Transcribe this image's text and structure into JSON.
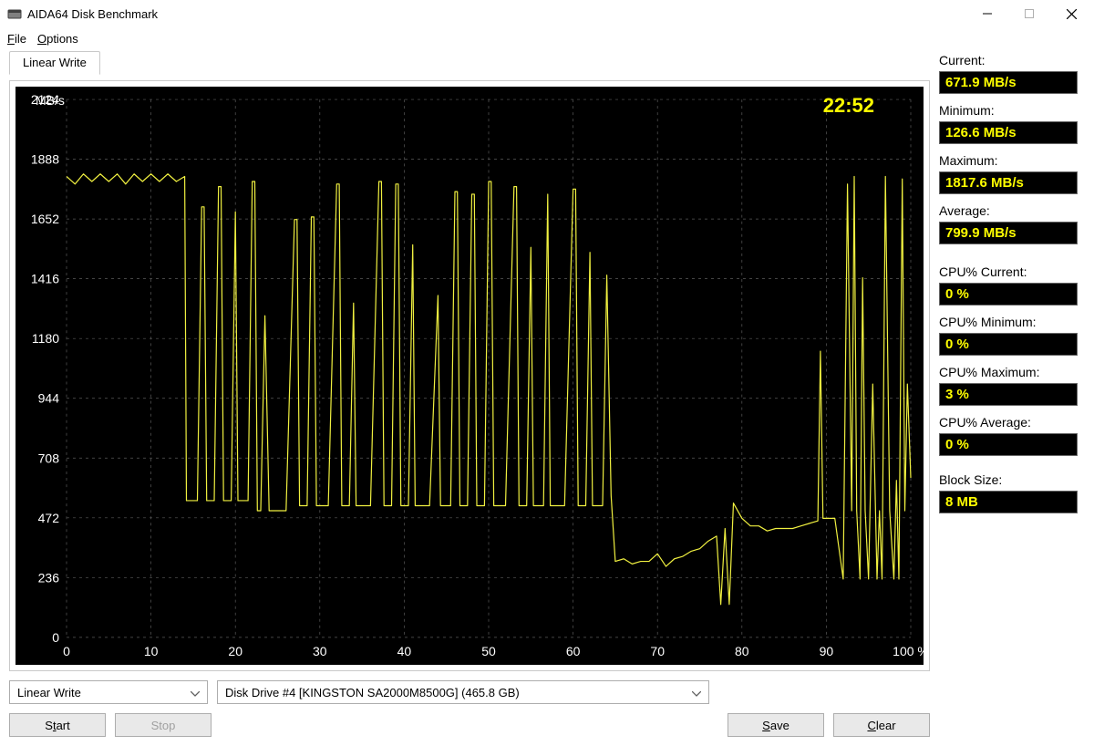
{
  "window": {
    "title": "AIDA64 Disk Benchmark"
  },
  "menu": {
    "file": "File",
    "options": "Options"
  },
  "tab": {
    "label": "Linear Write"
  },
  "chart": {
    "type": "line",
    "time_label": "22:52",
    "y_unit": "MB/s",
    "x_unit": "%",
    "ylim": [
      0,
      2124
    ],
    "xlim": [
      0,
      100
    ],
    "yticks": [
      0,
      236,
      472,
      708,
      944,
      1180,
      1416,
      1652,
      1888,
      2124
    ],
    "xticks": [
      0,
      10,
      20,
      30,
      40,
      50,
      60,
      70,
      80,
      90,
      100
    ],
    "background_color": "#000000",
    "grid_color": "#5a5a5a",
    "line_color": "#f0f040",
    "axis_text_color": "#ffffff",
    "time_text_color": "#ffff00",
    "axis_fontsize": 14,
    "line_width": 1.2,
    "data": {
      "x": [
        0,
        1,
        2,
        3,
        4,
        5,
        6,
        7,
        8,
        9,
        10,
        11,
        12,
        13,
        14,
        14.2,
        15,
        15.5,
        16,
        16.3,
        16.6,
        17,
        17.5,
        18,
        18.3,
        18.6,
        19,
        19.5,
        20,
        20.3,
        20.6,
        21,
        21.5,
        22,
        22.3,
        22.6,
        23,
        23.5,
        24,
        24.3,
        24.6,
        25,
        26,
        27,
        27.3,
        27.6,
        28,
        28.5,
        29,
        29.3,
        29.6,
        30,
        31,
        32,
        32.3,
        32.6,
        33,
        33.5,
        34,
        34.3,
        34.6,
        35,
        36,
        37,
        37.3,
        37.6,
        38,
        38.5,
        39,
        39.3,
        39.6,
        40,
        40.5,
        41,
        41.3,
        41.6,
        42,
        43,
        44,
        44.3,
        44.6,
        45,
        45.5,
        46,
        46.3,
        46.6,
        47,
        47.5,
        48,
        48.3,
        48.6,
        49,
        49.5,
        50,
        50.3,
        50.6,
        51,
        52,
        53,
        53.3,
        53.6,
        54,
        54.5,
        55,
        55.3,
        55.6,
        56,
        56.5,
        57,
        57.3,
        57.6,
        58,
        59,
        60,
        60.3,
        60.6,
        61,
        61.5,
        62,
        62.3,
        62.6,
        63,
        63.5,
        64,
        64.5,
        65,
        66,
        67,
        68,
        69,
        70,
        71,
        72,
        73,
        74,
        75,
        76,
        77,
        77.5,
        78,
        78.5,
        79,
        80,
        81,
        82,
        83,
        84,
        85,
        86,
        87,
        88,
        89,
        89.3,
        89.6,
        90,
        91,
        92,
        92.5,
        93,
        93.3,
        93.6,
        94,
        94.3,
        94.6,
        95,
        95.5,
        96,
        96.3,
        96.6,
        97,
        97.5,
        98,
        98.3,
        98.6,
        99,
        99.3,
        99.6,
        100
      ],
      "y": [
        1820,
        1790,
        1830,
        1800,
        1830,
        1800,
        1830,
        1790,
        1830,
        1800,
        1830,
        1800,
        1830,
        1800,
        1820,
        540,
        540,
        540,
        1700,
        1700,
        540,
        540,
        540,
        1780,
        1780,
        540,
        540,
        540,
        1680,
        540,
        540,
        540,
        540,
        1800,
        1800,
        500,
        500,
        1270,
        500,
        500,
        500,
        500,
        500,
        1650,
        1650,
        520,
        520,
        520,
        1660,
        1660,
        520,
        520,
        520,
        1790,
        1790,
        520,
        520,
        520,
        1320,
        520,
        520,
        520,
        520,
        1800,
        1800,
        520,
        520,
        520,
        1790,
        1790,
        520,
        520,
        520,
        1550,
        520,
        520,
        520,
        520,
        1350,
        520,
        520,
        520,
        520,
        1760,
        1760,
        520,
        520,
        520,
        1750,
        1750,
        520,
        520,
        520,
        1800,
        1800,
        520,
        520,
        520,
        1780,
        1780,
        520,
        520,
        520,
        1540,
        520,
        520,
        520,
        520,
        1750,
        520,
        520,
        520,
        520,
        1770,
        1770,
        520,
        520,
        520,
        1520,
        520,
        520,
        520,
        520,
        1430,
        560,
        300,
        310,
        290,
        300,
        300,
        330,
        280,
        310,
        320,
        340,
        350,
        380,
        400,
        130,
        430,
        130,
        530,
        470,
        440,
        440,
        420,
        430,
        430,
        430,
        440,
        450,
        460,
        1130,
        470,
        470,
        470,
        230,
        1790,
        500,
        1820,
        500,
        230,
        1420,
        500,
        230,
        1000,
        230,
        500,
        230,
        1820,
        500,
        230,
        620,
        230,
        1810,
        500,
        1000,
        630
      ]
    }
  },
  "controls": {
    "test_select": "Linear Write",
    "drive_select": "Disk Drive #4  [KINGSTON SA2000M8500G]  (465.8 GB)",
    "start": "Start",
    "stop": "Stop",
    "save": "Save",
    "clear": "Clear"
  },
  "metrics": [
    {
      "label": "Current:",
      "value": "671.9 MB/s"
    },
    {
      "label": "Minimum:",
      "value": "126.6 MB/s"
    },
    {
      "label": "Maximum:",
      "value": "1817.6 MB/s"
    },
    {
      "label": "Average:",
      "value": "799.9 MB/s"
    },
    {
      "label": "CPU% Current:",
      "value": "0 %"
    },
    {
      "label": "CPU% Minimum:",
      "value": "0 %"
    },
    {
      "label": "CPU% Maximum:",
      "value": "3 %"
    },
    {
      "label": "CPU% Average:",
      "value": "0 %"
    },
    {
      "label": "Block Size:",
      "value": "8 MB"
    }
  ],
  "colors": {
    "metric_box_bg": "#000000",
    "metric_box_text": "#ffff00"
  }
}
